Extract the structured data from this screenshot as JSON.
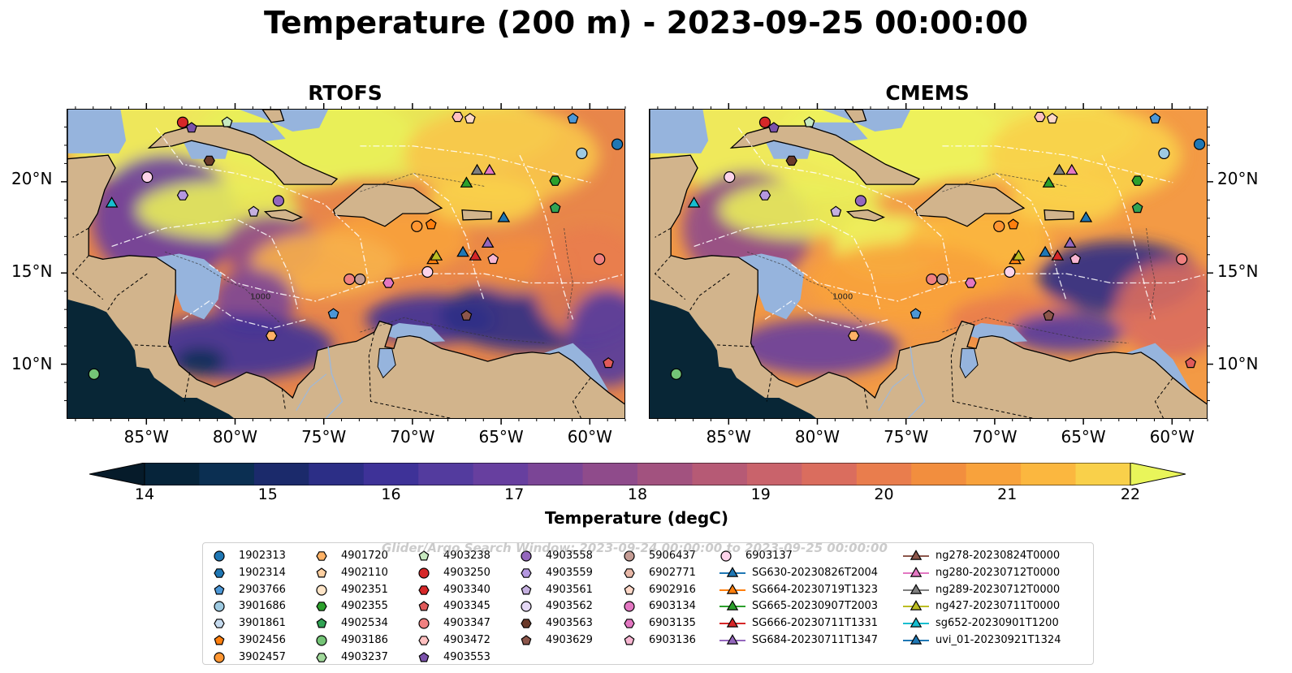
{
  "title": "Temperature (200 m) - 2023-09-25 00:00:00",
  "panels": [
    {
      "title": "RTOFS"
    },
    {
      "title": "CMEMS"
    }
  ],
  "axes": {
    "lon_labels": [
      "85°W",
      "80°W",
      "75°W",
      "70°W",
      "65°W",
      "60°W"
    ],
    "lat_labels": [
      "20°N",
      "15°N",
      "10°N"
    ]
  },
  "contour_labels": [
    "1000",
    "1000"
  ],
  "colorbar": {
    "label": "Temperature (degC)",
    "ticks": [
      "14",
      "15",
      "16",
      "17",
      "18",
      "19",
      "20",
      "21",
      "22"
    ],
    "min": 14,
    "max": 22,
    "step": 0.5,
    "extend": "both",
    "colors": [
      "#06243a",
      "#0b2f52",
      "#1b2a6b",
      "#2c2e86",
      "#3e3298",
      "#533b9e",
      "#673f9f",
      "#7b4596",
      "#8f4b8b",
      "#a2527f",
      "#b65a75",
      "#c9636b",
      "#da6d5e",
      "#e97d4d",
      "#f28e3e",
      "#f8a23c",
      "#fbb73f",
      "#f9d04a"
    ],
    "over_color": "#e9f55a",
    "under_color": "#061b2a"
  },
  "map_colors": {
    "land": "#d2b48c",
    "shallow": "#96b4dd",
    "pacific": "#082636",
    "border": "#000000",
    "eez": "#ffffff"
  },
  "watermark": "Glider/Argo Search Window: 2023-09-24 00:00:00 to 2023-09-25 00:00:00",
  "legend": {
    "columns": [
      [
        {
          "label": "1902313",
          "marker": "circle",
          "color": "#1f77b4"
        },
        {
          "label": "1902314",
          "marker": "hexagon",
          "color": "#1f77b4"
        },
        {
          "label": "2903766",
          "marker": "pentagon",
          "color": "#4c97d6"
        },
        {
          "label": "3901686",
          "marker": "circle",
          "color": "#9ecae1"
        },
        {
          "label": "3901861",
          "marker": "hexagon",
          "color": "#c6dbef"
        },
        {
          "label": "3902456",
          "marker": "pentagon",
          "color": "#ff7f0e"
        },
        {
          "label": "3902457",
          "marker": "circle",
          "color": "#ff9632"
        }
      ],
      [
        {
          "label": "4901720",
          "marker": "hexagon",
          "color": "#ffb266"
        },
        {
          "label": "4902110",
          "marker": "pentagon",
          "color": "#ffd0a1"
        },
        {
          "label": "4902351",
          "marker": "circle",
          "color": "#ffe5c8"
        },
        {
          "label": "4902355",
          "marker": "hexagon",
          "color": "#2ca02c"
        },
        {
          "label": "4902534",
          "marker": "pentagon",
          "color": "#31a354"
        },
        {
          "label": "4903186",
          "marker": "circle",
          "color": "#74c476"
        },
        {
          "label": "4903237",
          "marker": "hexagon",
          "color": "#a1d99b"
        }
      ],
      [
        {
          "label": "4903238",
          "marker": "pentagon",
          "color": "#c7e9c0"
        },
        {
          "label": "4903250",
          "marker": "circle",
          "color": "#d62728"
        },
        {
          "label": "4903340",
          "marker": "hexagon",
          "color": "#d62728"
        },
        {
          "label": "4903345",
          "marker": "pentagon",
          "color": "#e05a5a"
        },
        {
          "label": "4903347",
          "marker": "circle",
          "color": "#f08080"
        },
        {
          "label": "4903472",
          "marker": "hexagon",
          "color": "#ffc0c0"
        },
        {
          "label": "4903553",
          "marker": "pentagon",
          "color": "#7b52ab"
        }
      ],
      [
        {
          "label": "4903558",
          "marker": "circle",
          "color": "#9467bd"
        },
        {
          "label": "4903559",
          "marker": "hexagon",
          "color": "#b497e0"
        },
        {
          "label": "4903561",
          "marker": "pentagon",
          "color": "#c5b0e0"
        },
        {
          "label": "4903562",
          "marker": "circle",
          "color": "#e5d8f5"
        },
        {
          "label": "4903563",
          "marker": "hexagon",
          "color": "#6b3a2a"
        },
        {
          "label": "4903629",
          "marker": "pentagon",
          "color": "#8c564b"
        }
      ],
      [
        {
          "label": "5906437",
          "marker": "circle",
          "color": "#c49c94"
        },
        {
          "label": "6902771",
          "marker": "hexagon",
          "color": "#e8b8a8"
        },
        {
          "label": "6902916",
          "marker": "pentagon",
          "color": "#ffd8c8"
        },
        {
          "label": "6903134",
          "marker": "circle",
          "color": "#e377c2"
        },
        {
          "label": "6903135",
          "marker": "hexagon",
          "color": "#e377c2"
        },
        {
          "label": "6903136",
          "marker": "pentagon",
          "color": "#f7b6d2"
        }
      ],
      [
        {
          "label": "6903137",
          "marker": "circle",
          "color": "#fcd3ea"
        },
        {
          "label": "SG630-20230826T2004",
          "marker": "triangle",
          "color": "#1f77b4"
        },
        {
          "label": "SG664-20230719T1323",
          "marker": "triangle",
          "color": "#ff7f0e"
        },
        {
          "label": "SG665-20230907T2003",
          "marker": "triangle",
          "color": "#2ca02c"
        },
        {
          "label": "SG666-20230711T1331",
          "marker": "triangle",
          "color": "#d62728"
        },
        {
          "label": "SG684-20230711T1347",
          "marker": "triangle",
          "color": "#9467bd"
        }
      ],
      [
        {
          "label": "ng278-20230824T0000",
          "marker": "triangle",
          "color": "#8c564b"
        },
        {
          "label": "ng280-20230712T0000",
          "marker": "triangle",
          "color": "#e377c2"
        },
        {
          "label": "ng289-20230712T0000",
          "marker": "triangle",
          "color": "#7f7f7f"
        },
        {
          "label": "ng427-20230711T0000",
          "marker": "triangle",
          "color": "#bcbd22"
        },
        {
          "label": "sg652-20230901T1200",
          "marker": "triangle",
          "color": "#17becf"
        },
        {
          "label": "uvi_01-20230921T1324",
          "marker": "triangle",
          "color": "#1f77b4"
        }
      ]
    ]
  },
  "markers": [
    {
      "lon": -83.0,
      "lat": 23.3,
      "id": "4903250"
    },
    {
      "lon": -82.5,
      "lat": 23.0,
      "id": "4903553"
    },
    {
      "lon": -80.5,
      "lat": 23.3,
      "id": "4903238"
    },
    {
      "lon": -81.5,
      "lat": 21.2,
      "id": "4903563"
    },
    {
      "lon": -85.0,
      "lat": 20.3,
      "id": "6903137"
    },
    {
      "lon": -83.0,
      "lat": 19.3,
      "id": "4903559"
    },
    {
      "lon": -77.6,
      "lat": 19.0,
      "id": "4903558"
    },
    {
      "lon": -79.0,
      "lat": 18.4,
      "id": "4903561"
    },
    {
      "lon": -87.0,
      "lat": 18.9,
      "id": "sg652-20230901T1200",
      "shape": "triangle"
    },
    {
      "lon": -69.8,
      "lat": 17.6,
      "id": "3902457"
    },
    {
      "lon": -69.0,
      "lat": 17.7,
      "id": "3902456"
    },
    {
      "lon": -67.0,
      "lat": 20.0,
      "id": "SG665-20230907T2003",
      "shape": "triangle"
    },
    {
      "lon": -66.4,
      "lat": 20.7,
      "id": "ng289-20230712T0000",
      "shape": "triangle"
    },
    {
      "lon": -65.7,
      "lat": 20.7,
      "id": "ng280-20230712T0000",
      "shape": "triangle"
    },
    {
      "lon": -62.0,
      "lat": 20.1,
      "id": "4902355"
    },
    {
      "lon": -62.0,
      "lat": 18.6,
      "id": "4902534"
    },
    {
      "lon": -64.9,
      "lat": 18.1,
      "id": "uvi_01-20230921T1324",
      "shape": "triangle"
    },
    {
      "lon": -67.2,
      "lat": 16.2,
      "id": "SG630-20230826T2004",
      "shape": "triangle"
    },
    {
      "lon": -66.5,
      "lat": 16.0,
      "id": "SG666-20230711T1331",
      "shape": "triangle"
    },
    {
      "lon": -65.8,
      "lat": 16.7,
      "id": "SG684-20230711T1347",
      "shape": "triangle"
    },
    {
      "lon": -65.5,
      "lat": 15.8,
      "id": "6903136"
    },
    {
      "lon": -68.9,
      "lat": 15.8,
      "id": "SG664-20230719T1323",
      "shape": "triangle"
    },
    {
      "lon": -68.7,
      "lat": 16.0,
      "id": "ng427-20230711T0000",
      "shape": "triangle"
    },
    {
      "lon": -69.2,
      "lat": 15.1,
      "id": "6903137"
    },
    {
      "lon": -73.6,
      "lat": 14.7,
      "id": "4903347"
    },
    {
      "lon": -73.0,
      "lat": 14.7,
      "id": "5906437"
    },
    {
      "lon": -71.4,
      "lat": 14.5,
      "id": "6903135"
    },
    {
      "lon": -74.5,
      "lat": 12.8,
      "id": "2903766"
    },
    {
      "lon": -78.0,
      "lat": 11.6,
      "id": "4901720"
    },
    {
      "lon": -67.0,
      "lat": 12.7,
      "id": "4903629"
    },
    {
      "lon": -59.5,
      "lat": 15.8,
      "id": "4903347"
    },
    {
      "lon": -59.0,
      "lat": 10.1,
      "id": "4903345"
    },
    {
      "lon": -58.5,
      "lat": 22.1,
      "id": "1902313"
    },
    {
      "lon": -60.5,
      "lat": 21.6,
      "id": "3901686"
    },
    {
      "lon": -61.0,
      "lat": 23.5,
      "id": "2903766"
    },
    {
      "lon": -88.0,
      "lat": 9.5,
      "id": "4903186"
    },
    {
      "lon": -67.5,
      "lat": 23.6,
      "id": "4903472"
    },
    {
      "lon": -66.8,
      "lat": 23.5,
      "id": "6902916"
    }
  ]
}
